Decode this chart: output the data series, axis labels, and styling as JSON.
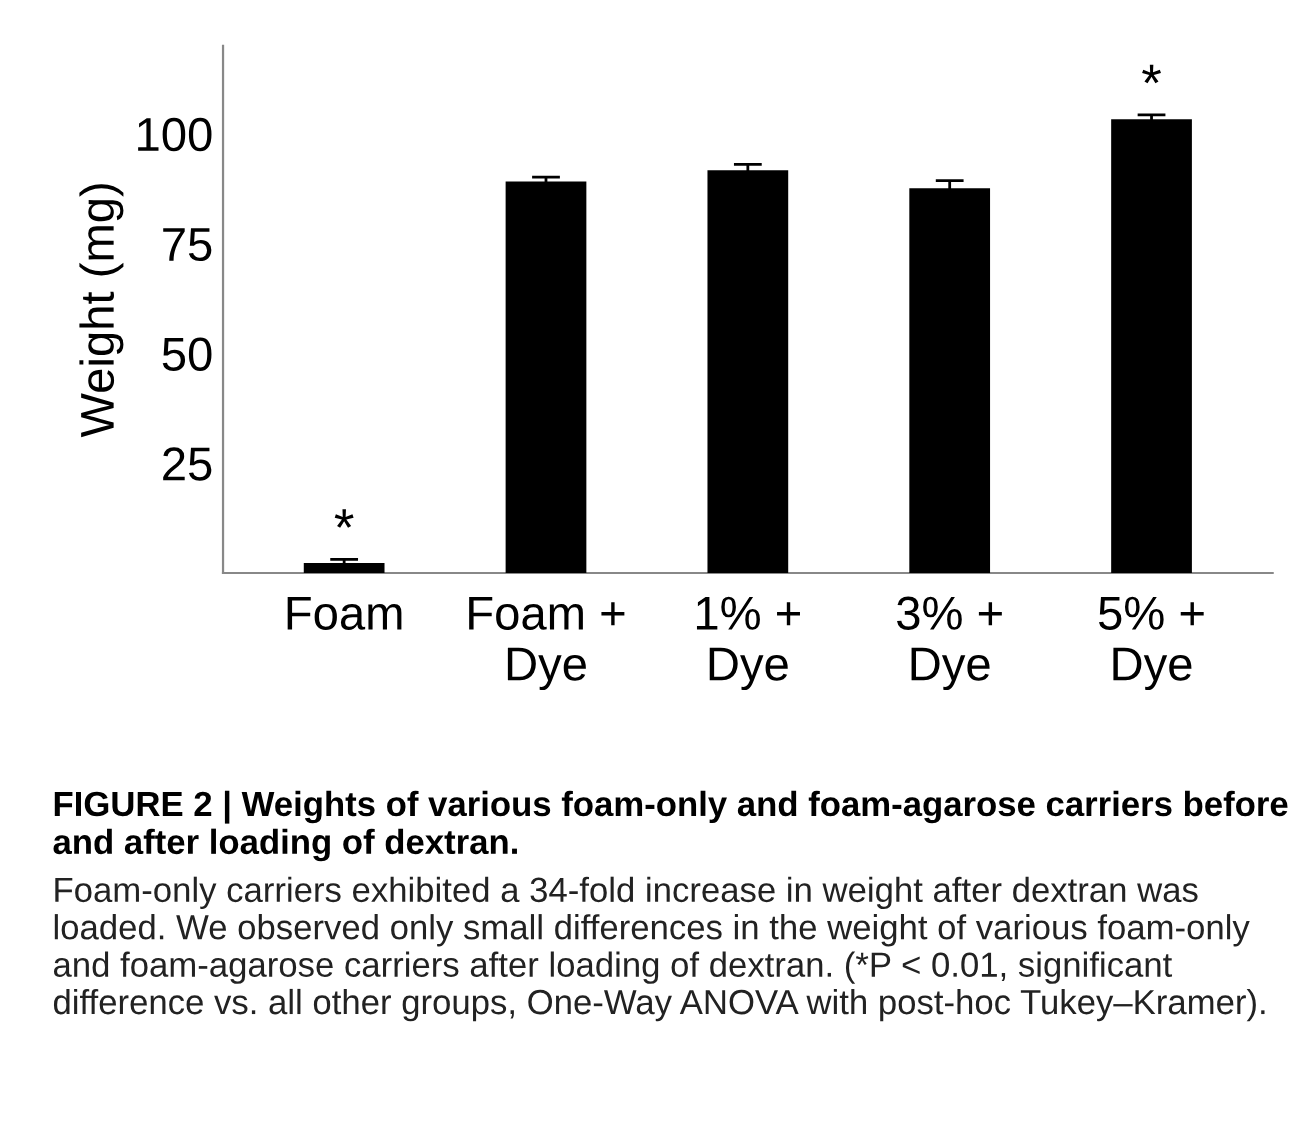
{
  "chart_data": {
    "type": "bar",
    "title": "FIGURE 2 | Weights of various foam-only and foam-agarose carriers before and after loading of dextran.",
    "ylabel": "Weight (mg)",
    "categories": [
      "Foam",
      "Foam +\nDye",
      "1% +\nDye",
      "3% +\nDye",
      "5% +\nDye"
    ],
    "values": [
      2.3,
      89.1,
      91.7,
      87.6,
      103.3
    ],
    "color": "#000000",
    "errors": [
      0.8,
      1.0,
      1.3,
      1.7,
      1.0
    ],
    "ylim": [
      0,
      120
    ],
    "yticks": [
      25,
      50,
      75,
      100
    ],
    "grid": false,
    "annotations": [
      {
        "text": "*",
        "x": "Foam",
        "y": 3.1
      },
      {
        "text": "*",
        "x": "5% +\nDye",
        "y": 104.3
      },
      "Foam-only carriers exhibited a 34-fold increase in weight after dextran was loaded. We observed only small differences in the weight of various foam-only and foam-agarose carriers after loading of dextran. (*P < 0.01, significant difference vs. all other groups, One-Way ANOVA with post-hoc Tukey–Kramer)."
    ]
  }
}
